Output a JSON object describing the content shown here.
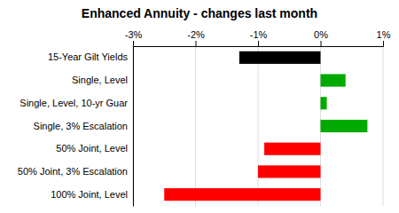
{
  "chart_data": {
    "type": "bar",
    "orientation": "horizontal",
    "title": "Enhanced Annuity - changes last month",
    "categories": [
      "15-Year Gilt Yields",
      "Single, Level",
      "Single, Level, 10-yr Guar",
      "Single, 3% Escalation",
      "50% Joint, Level",
      "50% Joint, 3% Escalation",
      "100% Joint, Level"
    ],
    "values": [
      -1.3,
      0.4,
      0.1,
      0.75,
      -0.9,
      -1.0,
      -2.5
    ],
    "colors": [
      "#000000",
      "#00aa00",
      "#00aa00",
      "#00aa00",
      "#ff0000",
      "#ff0000",
      "#ff0000"
    ],
    "xlim": [
      -3.0,
      1.0
    ],
    "xticks": [
      {
        "value": -3,
        "label": "-3%"
      },
      {
        "value": -2,
        "label": "-2%"
      },
      {
        "value": -1,
        "label": "-1%"
      },
      {
        "value": 0,
        "label": "0%"
      },
      {
        "value": 1,
        "label": "1%"
      }
    ],
    "grid": true
  }
}
